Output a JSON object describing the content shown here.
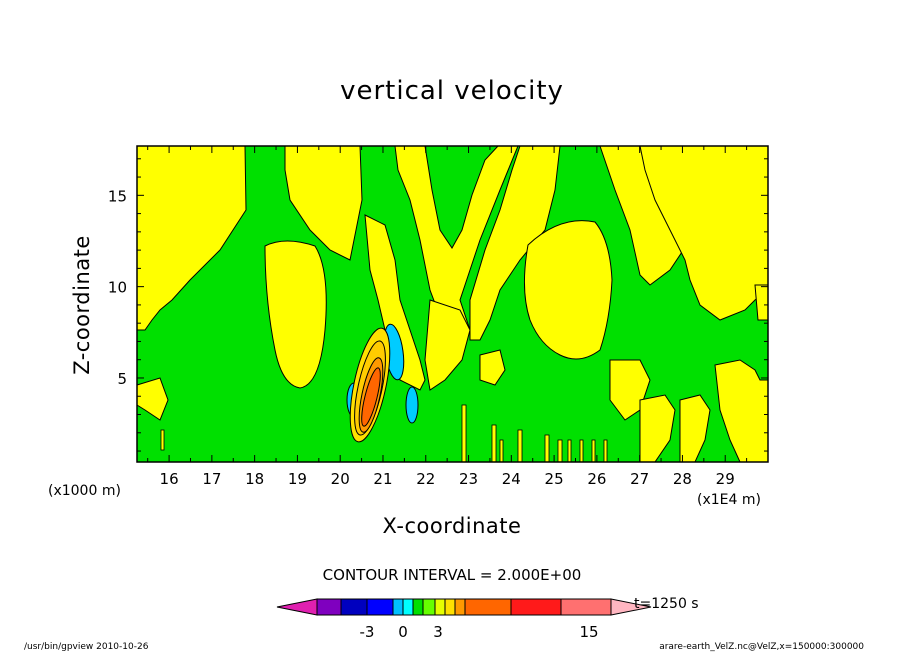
{
  "chart_data": {
    "type": "contour",
    "title": "vertical velocity",
    "xlabel": "X-coordinate",
    "ylabel": "Z-coordinate",
    "x_scale_note": "(x1000 m)",
    "x_offset_note": "(x1E4 m)",
    "x_ticks": [
      16,
      17,
      18,
      19,
      20,
      21,
      22,
      23,
      24,
      25,
      26,
      27,
      28,
      29
    ],
    "y_ticks": [
      5,
      10,
      15
    ],
    "xlim": [
      15.25,
      30.0
    ],
    "ylim": [
      0.4,
      17.7
    ],
    "contour_interval_text": "CONTOUR INTERVAL = 2.000E+00",
    "contour_interval": 2.0,
    "time_label": "t=1250 s",
    "colorbar": {
      "labels": [
        "-3",
        "0",
        "3",
        "15"
      ],
      "colors": [
        "#7f00bf",
        "#0000bf",
        "#0000ff",
        "#00bfff",
        "#00ffff",
        "#00e000",
        "#66ff00",
        "#e6ff00",
        "#ffe000",
        "#ff9900",
        "#ff6600",
        "#ff1a1a",
        "#ff7070",
        "#ffb6c1"
      ],
      "min_arrow_color": "#e020b0",
      "max_arrow_color": "#ffb6c1"
    },
    "field_colors": {
      "positive_weak": "#ffff00",
      "near_zero": "#00e000",
      "positive_strong": "#ff6600",
      "positive_mid": "#ffcc00",
      "negative": "#00ccff",
      "negative_mid": "#00e8ff"
    }
  },
  "footer": {
    "left": "/usr/bin/gpview   2010-10-26",
    "right": "arare-earth_VelZ.nc@VelZ,x=150000:300000"
  }
}
